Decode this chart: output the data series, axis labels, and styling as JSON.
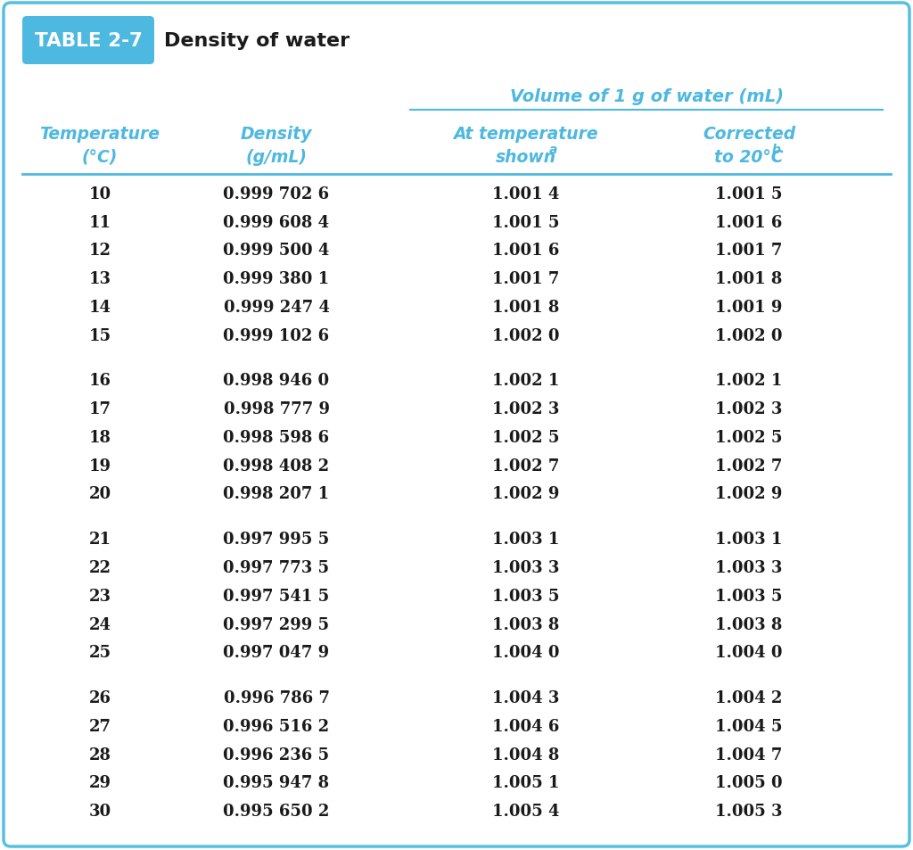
{
  "title_box_text": "TABLE 2-7",
  "title_text": "Density of water",
  "span_header": "Volume of 1 g of water (mL)",
  "col_headers_line1": [
    "Temperature",
    "Density",
    "At temperature",
    "Corrected"
  ],
  "col_headers_line2": [
    "(°C)",
    "(g/mL)",
    "shown",
    "to 20°C"
  ],
  "col_headers_super": [
    "",
    "",
    "a",
    "b"
  ],
  "rows": [
    [
      "10",
      "0.999 702 6",
      "1.001 4",
      "1.001 5"
    ],
    [
      "11",
      "0.999 608 4",
      "1.001 5",
      "1.001 6"
    ],
    [
      "12",
      "0.999 500 4",
      "1.001 6",
      "1.001 7"
    ],
    [
      "13",
      "0.999 380 1",
      "1.001 7",
      "1.001 8"
    ],
    [
      "14",
      "0.999 247 4",
      "1.001 8",
      "1.001 9"
    ],
    [
      "15",
      "0.999 102 6",
      "1.002 0",
      "1.002 0"
    ],
    [
      "16",
      "0.998 946 0",
      "1.002 1",
      "1.002 1"
    ],
    [
      "17",
      "0.998 777 9",
      "1.002 3",
      "1.002 3"
    ],
    [
      "18",
      "0.998 598 6",
      "1.002 5",
      "1.002 5"
    ],
    [
      "19",
      "0.998 408 2",
      "1.002 7",
      "1.002 7"
    ],
    [
      "20",
      "0.998 207 1",
      "1.002 9",
      "1.002 9"
    ],
    [
      "21",
      "0.997 995 5",
      "1.003 1",
      "1.003 1"
    ],
    [
      "22",
      "0.997 773 5",
      "1.003 3",
      "1.003 3"
    ],
    [
      "23",
      "0.997 541 5",
      "1.003 5",
      "1.003 5"
    ],
    [
      "24",
      "0.997 299 5",
      "1.003 8",
      "1.003 8"
    ],
    [
      "25",
      "0.997 047 9",
      "1.004 0",
      "1.004 0"
    ],
    [
      "26",
      "0.996 786 7",
      "1.004 3",
      "1.004 2"
    ],
    [
      "27",
      "0.996 516 2",
      "1.004 6",
      "1.004 5"
    ],
    [
      "28",
      "0.996 236 5",
      "1.004 8",
      "1.004 7"
    ],
    [
      "29",
      "0.995 947 8",
      "1.005 1",
      "1.005 0"
    ],
    [
      "30",
      "0.995 650 2",
      "1.005 4",
      "1.005 3"
    ]
  ],
  "group_breaks": [
    6,
    11,
    16
  ],
  "bg_color": "#ffffff",
  "border_color": "#55c0e0",
  "header_color": "#4db8e0",
  "title_box_bg": "#4db8e0",
  "title_box_text_color": "#ffffff",
  "title_text_color": "#1a1a1a",
  "data_text_color": "#1a1a1a",
  "figwidth": 10.24,
  "figheight": 9.54,
  "dpi": 100
}
